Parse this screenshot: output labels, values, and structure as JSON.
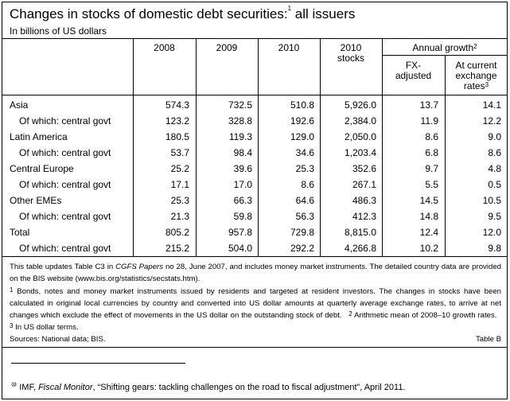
{
  "title": "Changes in stocks of domestic debt securities:",
  "title_sup": "1",
  "title_tail": " all issuers",
  "subtitle": "In billions of US dollars",
  "headers": {
    "y2008": "2008",
    "y2009": "2009",
    "y2010": "2010",
    "stocks_l1": "2010",
    "stocks_l2": "stocks",
    "annual": "Annual growth",
    "annual_sup": "2",
    "fx_l1": "FX-",
    "fx_l2": "adjusted",
    "cur_l1": "At current",
    "cur_l2": "exchange",
    "cur_l3": "rates",
    "cur_sup": "3"
  },
  "rows": [
    {
      "label": "Asia",
      "indent": false,
      "v": [
        "574.3",
        "732.5",
        "510.8",
        "5,926.0",
        "13.7",
        "14.1"
      ]
    },
    {
      "label": "Of which: central govt",
      "indent": true,
      "v": [
        "123.2",
        "328.8",
        "192.6",
        "2,384.0",
        "11.9",
        "12.2"
      ]
    },
    {
      "label": "Latin America",
      "indent": false,
      "v": [
        "180.5",
        "119.3",
        "129.0",
        "2,050.0",
        "8.6",
        "9.0"
      ]
    },
    {
      "label": "Of which: central govt",
      "indent": true,
      "v": [
        "53.7",
        "98.4",
        "34.6",
        "1,203.4",
        "6.8",
        "8.6"
      ]
    },
    {
      "label": "Central Europe",
      "indent": false,
      "v": [
        "25.2",
        "39.6",
        "25.3",
        "352.6",
        "9.7",
        "4.8"
      ]
    },
    {
      "label": "Of which: central govt",
      "indent": true,
      "v": [
        "17.1",
        "17.0",
        "8.6",
        "267.1",
        "5.5",
        "0.5"
      ]
    },
    {
      "label": "Other EMEs",
      "indent": false,
      "v": [
        "25.3",
        "66.3",
        "64.6",
        "486.3",
        "14.5",
        "10.5"
      ]
    },
    {
      "label": "Of which: central govt",
      "indent": true,
      "v": [
        "21.3",
        "59.8",
        "56.3",
        "412.3",
        "14.8",
        "9.5"
      ]
    },
    {
      "label": "Total",
      "indent": false,
      "v": [
        "805.2",
        "957.8",
        "729.8",
        "8,815.0",
        "12.4",
        "12.0"
      ]
    },
    {
      "label": "Of which: central govt",
      "indent": true,
      "v": [
        "215.2",
        "504.0",
        "292.2",
        "4,266.8",
        "10.2",
        "9.8"
      ]
    }
  ],
  "notes": {
    "intro_a": "This table updates Table C3 in ",
    "intro_italic": "CGFS Papers",
    "intro_b": " no 28, June 2007, and includes money market instruments. The detailed country data are provided on the BIS website (www.bis.org/statistics/secstats.htm).",
    "n1_sup": "1",
    "n1": " Bonds, notes and money market instruments issued by residents and targeted at resident investors. The changes in stocks have been calculated in original local currencies by country and converted into US dollar amounts at quarterly average exchange rates, to arrive at net changes which exclude the effect of movements in the US dollar on the outstanding stock of debt.",
    "n2_sup": "2",
    "n2": " Arithmetic mean of 2008–10 growth rates.",
    "n3_sup": "3",
    "n3": " In US dollar terms.",
    "sources": "Sources: National data; BIS.",
    "table_id": "Table B"
  },
  "footnote": {
    "marker": "⑩",
    "a": " IMF, ",
    "italic": "Fiscal Monitor",
    "b": ", “Shifting gears: tackling challenges on the road to fiscal adjustment”, April 2011."
  }
}
